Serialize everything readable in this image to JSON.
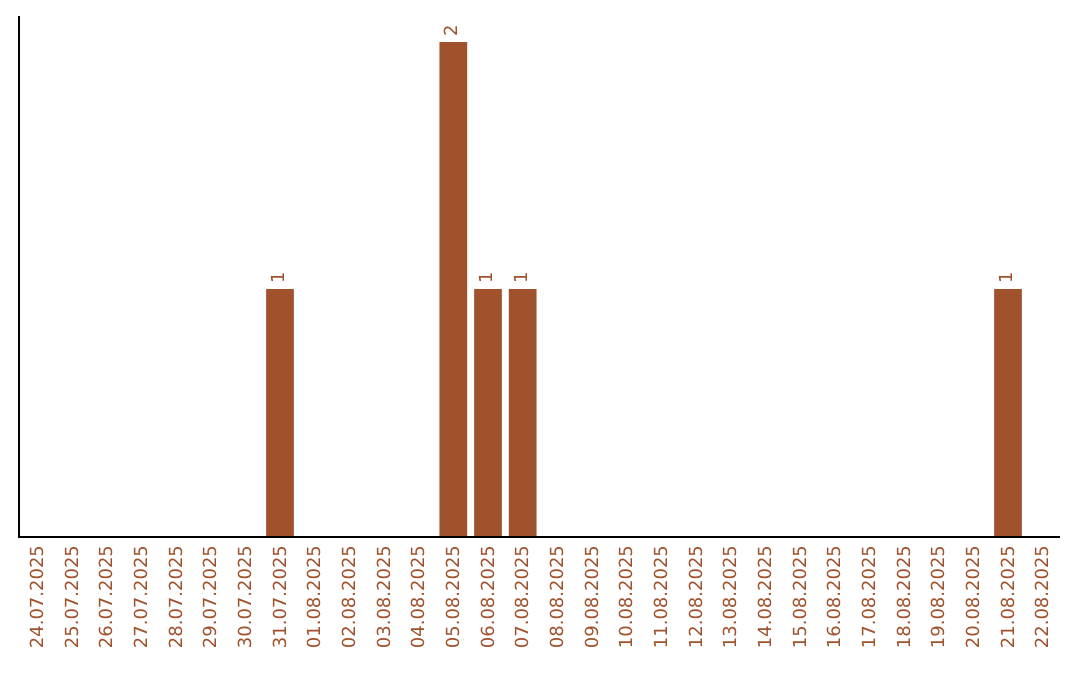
{
  "chart_data": {
    "type": "bar",
    "categories": [
      "24.07.2025",
      "25.07.2025",
      "26.07.2025",
      "27.07.2025",
      "28.07.2025",
      "29.07.2025",
      "30.07.2025",
      "31.07.2025",
      "01.08.2025",
      "02.08.2025",
      "03.08.2025",
      "04.08.2025",
      "05.08.2025",
      "06.08.2025",
      "07.08.2025",
      "08.08.2025",
      "09.08.2025",
      "10.08.2025",
      "11.08.2025",
      "12.08.2025",
      "13.08.2025",
      "14.08.2025",
      "15.08.2025",
      "16.08.2025",
      "17.08.2025",
      "18.08.2025",
      "19.08.2025",
      "20.08.2025",
      "21.08.2025",
      "22.08.2025"
    ],
    "values": [
      0,
      0,
      0,
      0,
      0,
      0,
      0,
      1,
      0,
      0,
      0,
      0,
      2,
      1,
      1,
      0,
      0,
      0,
      0,
      0,
      0,
      0,
      0,
      0,
      0,
      0,
      0,
      0,
      1,
      0
    ],
    "value_labels": [
      null,
      null,
      null,
      null,
      null,
      null,
      null,
      "1",
      null,
      null,
      null,
      null,
      "2",
      "1",
      "1",
      null,
      null,
      null,
      null,
      null,
      null,
      null,
      null,
      null,
      null,
      null,
      null,
      null,
      "1",
      null
    ],
    "color": "#a0522d",
    "tick_labels": "x"
  }
}
